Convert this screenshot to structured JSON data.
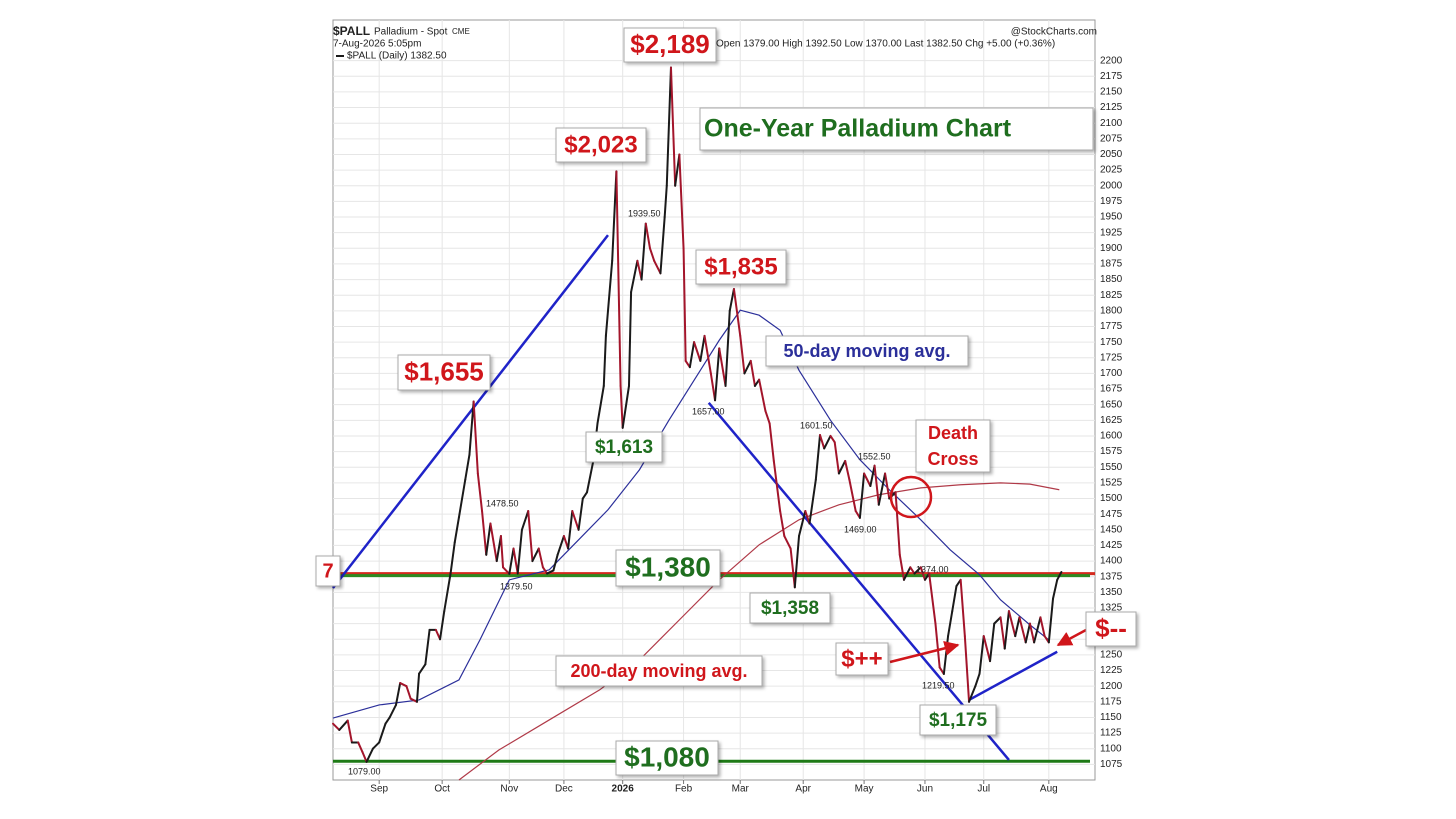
{
  "chart_data": {
    "type": "line",
    "title": "One-Year Palladium Chart",
    "header": {
      "symbol": "$PALL",
      "name": "Palladium - Spot",
      "exchange": "CME",
      "date": "7-Aug-2026 5:05pm",
      "ohlc": "Open 1379.00  High 1392.50  Low 1370.00  Last 1382.50  Chg +5.00 (+0.36%)",
      "source": "@StockCharts.com"
    },
    "xlim": [
      0,
      363
    ],
    "xticks": [
      {
        "value": 22,
        "label": "Sep"
      },
      {
        "value": 52,
        "label": "Oct"
      },
      {
        "value": 84,
        "label": "Nov"
      },
      {
        "value": 110,
        "label": "Dec"
      },
      {
        "value": 138,
        "label": "2026"
      },
      {
        "value": 167,
        "label": "Feb"
      },
      {
        "value": 194,
        "label": "Mar"
      },
      {
        "value": 224,
        "label": "Apr"
      },
      {
        "value": 253,
        "label": "May"
      },
      {
        "value": 282,
        "label": "Jun"
      },
      {
        "value": 310,
        "label": "Jul"
      },
      {
        "value": 341,
        "label": "Aug"
      }
    ],
    "ylim": [
      1050,
      2225
    ],
    "yticks": [
      1075,
      1100,
      1125,
      1150,
      1175,
      1200,
      1225,
      1250,
      1275,
      1300,
      1325,
      1350,
      1375,
      1400,
      1425,
      1450,
      1475,
      1500,
      1525,
      1550,
      1575,
      1600,
      1625,
      1650,
      1675,
      1700,
      1725,
      1750,
      1775,
      1800,
      1825,
      1850,
      1875,
      1900,
      1925,
      1950,
      1975,
      2000,
      2025,
      2050,
      2075,
      2100,
      2125,
      2150,
      2175,
      2200
    ],
    "grid": true,
    "series": [
      {
        "name": "$PALL (Daily) 1382.50",
        "color": "#1a1a1a",
        "down_color": "#a3152b",
        "x": [
          0,
          3,
          7,
          9,
          12,
          14,
          16,
          19,
          22,
          25,
          27,
          30,
          32,
          35,
          37,
          40,
          41,
          44,
          46,
          49,
          51,
          53,
          56,
          58,
          60,
          63,
          65,
          67,
          69,
          71,
          73,
          75,
          78,
          80,
          81,
          84,
          86,
          88,
          90,
          93,
          95,
          98,
          100,
          102,
          105,
          107,
          110,
          112,
          114,
          117,
          119,
          121,
          124,
          126,
          129,
          130,
          133,
          135,
          137,
          138,
          141,
          142,
          145,
          147,
          149,
          151,
          153,
          156,
          158,
          159,
          161,
          163,
          165,
          167,
          168,
          170,
          172,
          175,
          177,
          180,
          182,
          184,
          187,
          189,
          191,
          194,
          196,
          199,
          201,
          203,
          206,
          208,
          210,
          213,
          215,
          218,
          220,
          222,
          225,
          227,
          230,
          232,
          234,
          237,
          239,
          241,
          244,
          246,
          249,
          251,
          253,
          256,
          258,
          260,
          263,
          265,
          268,
          270,
          272,
          275,
          277,
          280,
          282,
          284,
          287,
          289,
          291,
          293,
          295,
          297,
          299,
          301,
          303,
          306,
          308,
          310,
          313,
          315,
          318,
          320,
          322,
          325,
          327,
          330,
          332,
          334,
          337,
          339,
          341,
          343,
          345,
          347
        ],
        "values": [
          1140,
          1130,
          1145,
          1110,
          1110,
          1095,
          1079,
          1100,
          1110,
          1140,
          1150,
          1170,
          1205,
          1200,
          1180,
          1175,
          1220,
          1235,
          1290,
          1290,
          1275,
          1320,
          1380,
          1430,
          1470,
          1530,
          1570,
          1655,
          1540,
          1480,
          1410,
          1460,
          1400,
          1440,
          1390,
          1379.5,
          1420,
          1380,
          1450,
          1480,
          1400,
          1420,
          1390,
          1380,
          1385,
          1410,
          1440,
          1420,
          1480,
          1450,
          1500,
          1510,
          1560,
          1620,
          1680,
          1760,
          1880,
          2023,
          1680,
          1613,
          1680,
          1830,
          1880,
          1850,
          1939.5,
          1900,
          1880,
          1860,
          1950,
          2000,
          2189,
          2000,
          2050,
          1900,
          1720,
          1710,
          1750,
          1720,
          1760,
          1700,
          1657,
          1740,
          1680,
          1800,
          1835,
          1760,
          1700,
          1720,
          1680,
          1690,
          1640,
          1620,
          1560,
          1480,
          1440,
          1420,
          1358,
          1440,
          1480,
          1460,
          1530,
          1601.5,
          1580,
          1600,
          1590,
          1540,
          1560,
          1530,
          1480,
          1469,
          1540,
          1520,
          1552.5,
          1490,
          1540,
          1500,
          1510,
          1410,
          1370,
          1390,
          1380,
          1390,
          1370,
          1380,
          1300,
          1230,
          1219.5,
          1280,
          1320,
          1360,
          1370,
          1280,
          1175,
          1200,
          1220,
          1280,
          1240,
          1300,
          1310,
          1260,
          1320,
          1280,
          1310,
          1270,
          1300,
          1270,
          1310,
          1280,
          1270,
          1340,
          1370,
          1382.5
        ]
      },
      {
        "name": "50-day moving avg.",
        "color": "#2b2f9a",
        "x": [
          0,
          22,
          41,
          60,
          70,
          84,
          103,
          117,
          131,
          146,
          160,
          175,
          184,
          194,
          203,
          213,
          222,
          237,
          251,
          265,
          280,
          294,
          308,
          318,
          332,
          341
        ],
        "values": [
          1149,
          1170,
          1178,
          1210,
          1274,
          1370,
          1386,
          1434,
          1482,
          1546,
          1625,
          1705,
          1753,
          1801,
          1793,
          1769,
          1705,
          1625,
          1562,
          1514,
          1466,
          1418,
          1378,
          1338,
          1298,
          1274
        ]
      },
      {
        "name": "200-day moving avg.",
        "color": "#b03a48",
        "x": [
          60,
          79,
          103,
          127,
          146,
          165,
          184,
          203,
          222,
          241,
          260,
          280,
          299,
          318,
          332,
          346
        ],
        "values": [
          1050,
          1098,
          1146,
          1194,
          1242,
          1306,
          1370,
          1426,
          1466,
          1490,
          1506,
          1517,
          1522,
          1525,
          1523,
          1514
        ]
      }
    ],
    "hlines": [
      {
        "value": 1380,
        "color": "#d42a1e"
      },
      {
        "value": 1380,
        "color": "#2e8a22"
      },
      {
        "value": 1080,
        "color": "#1e7a16"
      }
    ],
    "trendlines": [
      {
        "color": "#1f23c8",
        "x": [
          0,
          131
        ],
        "values": [
          1357,
          1921
        ]
      },
      {
        "color": "#1f23c8",
        "x": [
          179,
          322
        ],
        "values": [
          1653,
          1082
        ]
      },
      {
        "color": "#1f23c8",
        "x": [
          303,
          345
        ],
        "values": [
          1178,
          1255
        ]
      }
    ],
    "annotations": [
      {
        "lines": [
          "$2,189"
        ],
        "color": "#d0161b"
      },
      {
        "lines": [
          "$2,023"
        ],
        "color": "#d0161b"
      },
      {
        "lines": [
          "$1,835"
        ],
        "color": "#d0161b"
      },
      {
        "lines": [
          "$1,655"
        ],
        "color": "#d0161b"
      },
      {
        "lines": [
          "$1,613"
        ],
        "color": "#1f6e1f"
      },
      {
        "lines": [
          "$1,380"
        ],
        "color": "#1f6e1f"
      },
      {
        "lines": [
          "$1,358"
        ],
        "color": "#1f6e1f"
      },
      {
        "lines": [
          "$1,175"
        ],
        "color": "#1f6e1f"
      },
      {
        "lines": [
          "$1,080"
        ],
        "color": "#1f6e1f"
      },
      {
        "lines": [
          "$++"
        ],
        "color": "#d0161b"
      },
      {
        "lines": [
          "$--"
        ],
        "color": "#d0161b"
      },
      {
        "lines": [
          "Death",
          "Cross"
        ],
        "color": "#d0161b"
      },
      {
        "lines": [
          "7"
        ],
        "color": "#d0161b"
      }
    ],
    "point_labels": [
      "1939.50",
      "1478.50",
      "1379.50",
      "1657.00",
      "1601.50",
      "1552.50",
      "1469.00",
      "1219.50",
      "1079.00",
      "1374.00"
    ]
  }
}
